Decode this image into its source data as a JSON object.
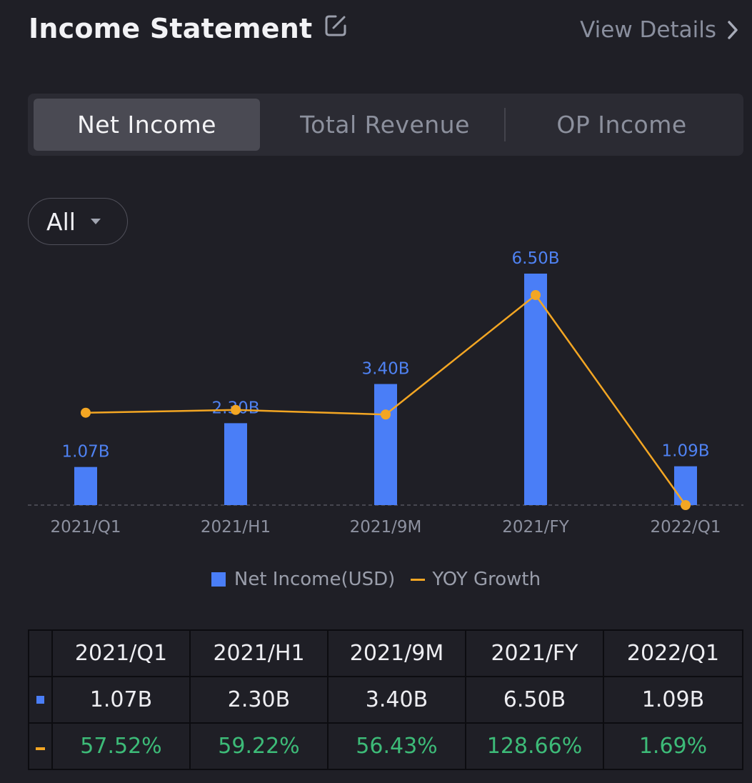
{
  "header": {
    "title": "Income Statement",
    "view_details": "View Details"
  },
  "tabs": [
    {
      "label": "Net Income",
      "active": true
    },
    {
      "label": "Total Revenue",
      "active": false
    },
    {
      "label": "OP Income",
      "active": false
    }
  ],
  "filter": {
    "selected": "All"
  },
  "colors": {
    "bar": "#4a7ef7",
    "line": "#f3a623",
    "growth_text": "#3dbb78"
  },
  "chart_data": {
    "type": "bar",
    "categories": [
      "2021/Q1",
      "2021/H1",
      "2021/9M",
      "2021/FY",
      "2022/Q1"
    ],
    "series": [
      {
        "name": "Net Income(USD)",
        "type": "bar",
        "values": [
          1.07,
          2.3,
          3.4,
          6.5,
          1.09
        ],
        "labels": [
          "1.07B",
          "2.30B",
          "3.40B",
          "6.50B",
          "1.09B"
        ]
      },
      {
        "name": "YOY Growth",
        "type": "line",
        "values": [
          57.52,
          59.22,
          56.43,
          128.66,
          1.69
        ]
      }
    ],
    "legend": "bottom-center"
  },
  "table": {
    "headers": [
      "2021/Q1",
      "2021/H1",
      "2021/9M",
      "2021/FY",
      "2022/Q1"
    ],
    "values": [
      "1.07B",
      "2.30B",
      "3.40B",
      "6.50B",
      "1.09B"
    ],
    "growth": [
      "57.52%",
      "59.22%",
      "56.43%",
      "128.66%",
      "1.69%"
    ]
  }
}
